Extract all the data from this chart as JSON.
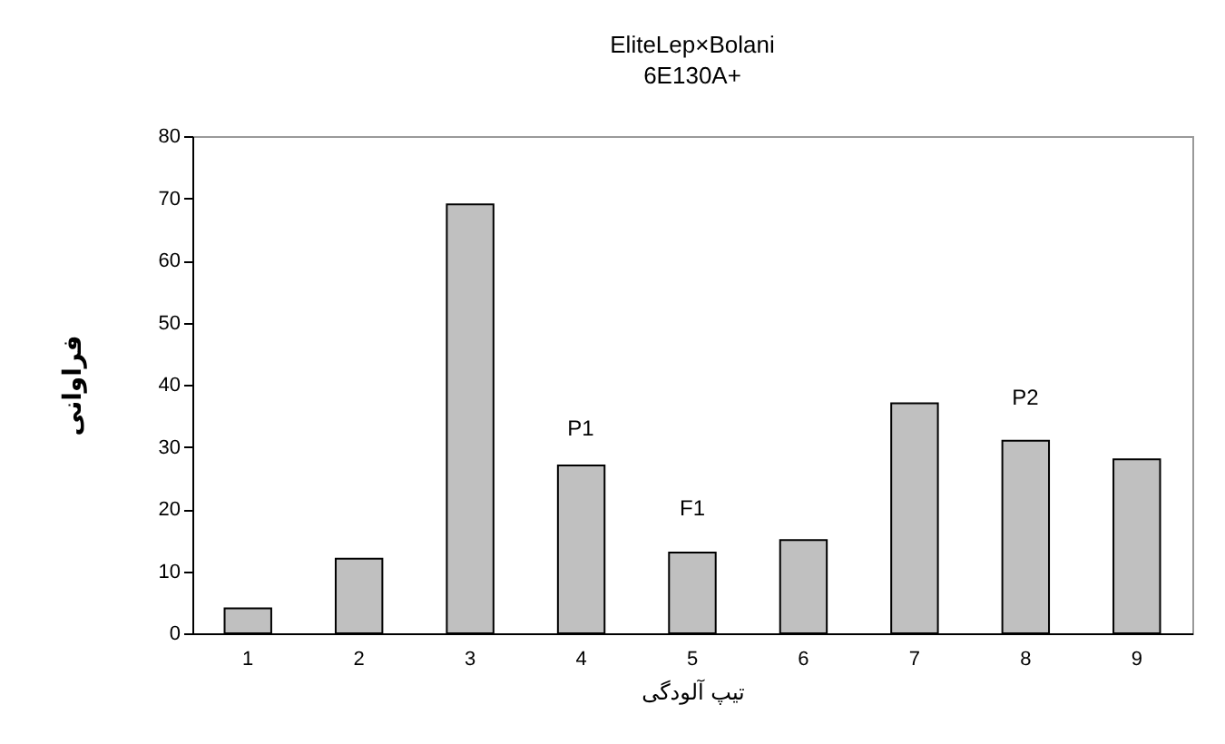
{
  "chart_data": {
    "type": "bar",
    "title": "EliteLep×Bolani",
    "subtitle": "6E130A+",
    "xlabel": "تیپ آلودگی",
    "ylabel": "فراوانی",
    "categories": [
      "1",
      "2",
      "3",
      "4",
      "5",
      "6",
      "7",
      "8",
      "9"
    ],
    "values": [
      4,
      12,
      69,
      27,
      13,
      15,
      37,
      31,
      28
    ],
    "color": "#c0c0c0",
    "ylim": [
      0,
      80
    ],
    "yticks": [
      0,
      10,
      20,
      30,
      40,
      50,
      60,
      70,
      80
    ],
    "grid": false,
    "annotations": [
      "P1",
      "F1",
      "P2"
    ]
  }
}
